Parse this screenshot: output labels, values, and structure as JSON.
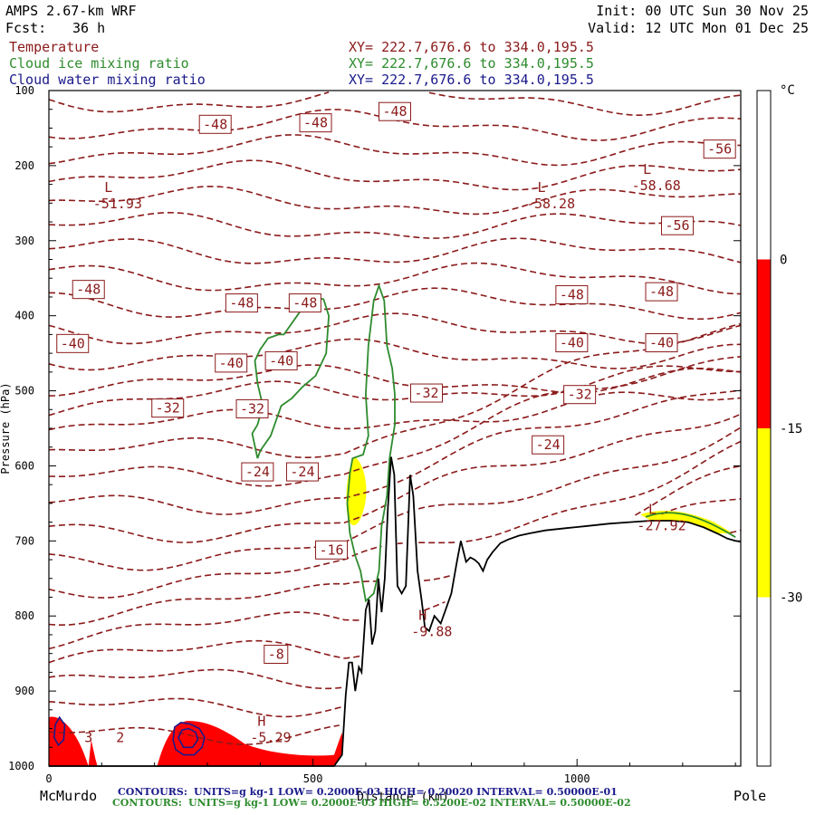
{
  "header": {
    "model": "AMPS 2.67-km WRF",
    "fcst_label": "Fcst:",
    "fcst_value": "36 h",
    "init": "Init: 00 UTC Sun 30 Nov 25",
    "valid": "Valid: 12 UTC Mon 01 Dec 25"
  },
  "fields": [
    {
      "name": "Temperature",
      "xy": "XY= 222.7,676.6 to 334.0,195.5",
      "color": "#8b1a1a"
    },
    {
      "name": "Cloud ice mixing ratio",
      "xy": "XY= 222.7,676.6 to 334.0,195.5",
      "color": "#2e8b2e"
    },
    {
      "name": "Cloud water mixing ratio",
      "xy": "XY= 222.7,676.6 to 334.0,195.5",
      "color": "#1a1a8b"
    }
  ],
  "chart_data": {
    "type": "contour_cross_section",
    "ylabel": "Pressure (hPa)",
    "xlabel": "Distance (km)",
    "xlim": [
      0,
      1310
    ],
    "ylim": [
      1000,
      100
    ],
    "x_ticks": [
      "0",
      "500",
      "1000"
    ],
    "x_tick_values": [
      0,
      500,
      1000
    ],
    "y_ticks": [
      "100",
      "200",
      "300",
      "400",
      "500",
      "600",
      "700",
      "800",
      "900",
      "1000"
    ],
    "y_tick_values": [
      100,
      200,
      300,
      400,
      500,
      600,
      700,
      800,
      900,
      1000
    ],
    "x_end_labels": {
      "left": "McMurdo",
      "right": "Pole"
    },
    "colorbar": {
      "unit": "°C",
      "ticks": [
        "0",
        "-15",
        "-30"
      ],
      "tick_values": [
        0,
        -15,
        -30
      ],
      "bands": [
        {
          "from": 15,
          "to": 0,
          "color": "#ffffff"
        },
        {
          "from": 0,
          "to": -15,
          "color": "#ff0000"
        },
        {
          "from": -15,
          "to": -30,
          "color": "#ffff00"
        },
        {
          "from": -30,
          "to": -45,
          "color": "#ffffff"
        }
      ]
    },
    "temperature_labels": [
      {
        "text": "-48",
        "x": 315,
        "p": 145
      },
      {
        "text": "-48",
        "x": 505,
        "p": 143
      },
      {
        "text": "-48",
        "x": 655,
        "p": 128
      },
      {
        "text": "-56",
        "x": 1270,
        "p": 178
      },
      {
        "text": "-56",
        "x": 1190,
        "p": 280
      },
      {
        "text": "-48",
        "x": 75,
        "p": 365
      },
      {
        "text": "-48",
        "x": 365,
        "p": 383
      },
      {
        "text": "-48",
        "x": 485,
        "p": 383
      },
      {
        "text": "-48",
        "x": 990,
        "p": 372
      },
      {
        "text": "-48",
        "x": 1160,
        "p": 368
      },
      {
        "text": "-40",
        "x": 45,
        "p": 437
      },
      {
        "text": "-40",
        "x": 345,
        "p": 463
      },
      {
        "text": "-40",
        "x": 440,
        "p": 460
      },
      {
        "text": "-40",
        "x": 990,
        "p": 436
      },
      {
        "text": "-40",
        "x": 1160,
        "p": 436
      },
      {
        "text": "-32",
        "x": 225,
        "p": 523
      },
      {
        "text": "-32",
        "x": 385,
        "p": 524
      },
      {
        "text": "-32",
        "x": 715,
        "p": 503
      },
      {
        "text": "-32",
        "x": 1005,
        "p": 505
      },
      {
        "text": "-24",
        "x": 945,
        "p": 572
      },
      {
        "text": "-24",
        "x": 395,
        "p": 608
      },
      {
        "text": "-24",
        "x": 480,
        "p": 608
      },
      {
        "text": "-16",
        "x": 535,
        "p": 712
      },
      {
        "text": "-8",
        "x": 430,
        "p": 851
      }
    ],
    "extrema": [
      {
        "kind": "L",
        "value": "-51.93",
        "x": 130,
        "p": 252
      },
      {
        "kind": "L",
        "value": "-58.28",
        "x": 950,
        "p": 252
      },
      {
        "kind": "L",
        "value": "-58.68",
        "x": 1150,
        "p": 228
      },
      {
        "kind": "L",
        "value": "-27.92",
        "x": 1160,
        "p": 681
      },
      {
        "kind": "H",
        "value": "-9.88",
        "x": 725,
        "p": 822
      },
      {
        "kind": "H",
        "value": "-5.29",
        "x": 420,
        "p": 963
      },
      {
        "kind": "",
        "value": "3",
        "x": 75,
        "p": 963
      },
      {
        "kind": "",
        "value": "2",
        "x": 135,
        "p": 963
      }
    ],
    "terrain_profile": [
      [
        0,
        1000
      ],
      [
        540,
        1000
      ],
      [
        555,
        985
      ],
      [
        562,
        905
      ],
      [
        568,
        862
      ],
      [
        574,
        862
      ],
      [
        580,
        900
      ],
      [
        587,
        868
      ],
      [
        592,
        875
      ],
      [
        600,
        792
      ],
      [
        606,
        778
      ],
      [
        612,
        838
      ],
      [
        618,
        820
      ],
      [
        624,
        750
      ],
      [
        630,
        795
      ],
      [
        636,
        750
      ],
      [
        642,
        655
      ],
      [
        648,
        588
      ],
      [
        654,
        612
      ],
      [
        660,
        760
      ],
      [
        668,
        770
      ],
      [
        676,
        760
      ],
      [
        684,
        612
      ],
      [
        690,
        640
      ],
      [
        698,
        740
      ],
      [
        706,
        780
      ],
      [
        712,
        815
      ],
      [
        720,
        820
      ],
      [
        730,
        800
      ],
      [
        742,
        810
      ],
      [
        752,
        790
      ],
      [
        762,
        770
      ],
      [
        772,
        730
      ],
      [
        780,
        700
      ],
      [
        790,
        728
      ],
      [
        798,
        722
      ],
      [
        806,
        725
      ],
      [
        814,
        730
      ],
      [
        822,
        740
      ],
      [
        830,
        725
      ],
      [
        840,
        715
      ],
      [
        855,
        703
      ],
      [
        870,
        698
      ],
      [
        890,
        693
      ],
      [
        910,
        690
      ],
      [
        940,
        686
      ],
      [
        980,
        683
      ],
      [
        1020,
        680
      ],
      [
        1060,
        677
      ],
      [
        1100,
        675
      ],
      [
        1140,
        673
      ],
      [
        1180,
        673
      ],
      [
        1210,
        675
      ],
      [
        1240,
        682
      ],
      [
        1265,
        690
      ],
      [
        1285,
        697
      ],
      [
        1300,
        700
      ],
      [
        1310,
        701
      ]
    ],
    "cloud_ice_contours": [
      [
        [
          395,
          590
        ],
        [
          385,
          557
        ],
        [
          395,
          545
        ],
        [
          405,
          520
        ],
        [
          395,
          490
        ],
        [
          390,
          460
        ],
        [
          400,
          445
        ],
        [
          415,
          430
        ],
        [
          435,
          425
        ],
        [
          445,
          425
        ],
        [
          470,
          400
        ],
        [
          495,
          375
        ],
        [
          520,
          378
        ],
        [
          530,
          400
        ],
        [
          525,
          450
        ],
        [
          505,
          480
        ],
        [
          480,
          495
        ],
        [
          460,
          510
        ],
        [
          440,
          520
        ],
        [
          420,
          560
        ],
        [
          400,
          580
        ],
        [
          395,
          590
        ]
      ],
      [
        [
          570,
          690
        ],
        [
          565,
          650
        ],
        [
          570,
          610
        ],
        [
          575,
          590
        ],
        [
          595,
          585
        ],
        [
          605,
          560
        ],
        [
          600,
          505
        ],
        [
          605,
          440
        ],
        [
          615,
          380
        ],
        [
          625,
          360
        ],
        [
          635,
          380
        ],
        [
          640,
          440
        ],
        [
          650,
          470
        ],
        [
          655,
          505
        ],
        [
          655,
          545
        ],
        [
          645,
          590
        ],
        [
          640,
          640
        ],
        [
          630,
          680
        ],
        [
          625,
          740
        ],
        [
          615,
          770
        ],
        [
          600,
          780
        ],
        [
          590,
          740
        ],
        [
          580,
          720
        ],
        [
          570,
          690
        ]
      ]
    ],
    "cloud_water_contours": [
      [
        [
          235,
          965
        ],
        [
          238,
          948
        ],
        [
          250,
          942
        ],
        [
          268,
          944
        ],
        [
          285,
          950
        ],
        [
          295,
          962
        ],
        [
          290,
          975
        ],
        [
          275,
          985
        ],
        [
          255,
          985
        ],
        [
          240,
          978
        ],
        [
          235,
          965
        ]
      ],
      [
        [
          245,
          962
        ],
        [
          252,
          952
        ],
        [
          265,
          950
        ],
        [
          278,
          955
        ],
        [
          282,
          965
        ],
        [
          272,
          975
        ],
        [
          255,
          975
        ],
        [
          245,
          962
        ]
      ],
      [
        [
          10,
          962
        ],
        [
          12,
          945
        ],
        [
          20,
          935
        ],
        [
          30,
          945
        ],
        [
          28,
          965
        ],
        [
          18,
          972
        ],
        [
          10,
          962
        ]
      ]
    ],
    "footer_contours": [
      {
        "label": "CONTOURS:",
        "text": "UNITS=g kg-1  LOW= 0.2000E-03  HIGH= 0.20020  INTERVAL= 0.50000E-01",
        "color": "#1a1a8b"
      },
      {
        "label": "CONTOURS:",
        "text": "UNITS=g kg-1  LOW= 0.2000E-03  HIGH= 0.5200E-02  INTERVAL= 0.50000E-02",
        "color": "#2e8b2e"
      }
    ]
  }
}
